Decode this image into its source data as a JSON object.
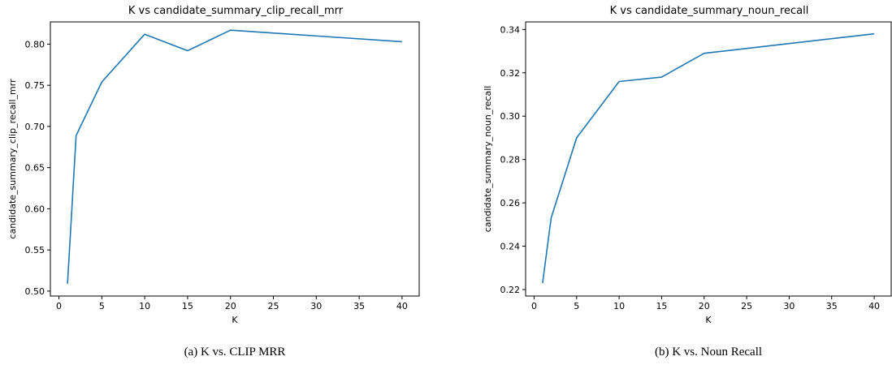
{
  "chart_data": [
    {
      "type": "line",
      "title": "K vs candidate_summary_clip_recall_mrr",
      "xlabel": "K",
      "ylabel": "candidate_summary_clip_recall_mrr",
      "caption": "(a) K vs. CLIP MRR",
      "xlim": [
        -1,
        42
      ],
      "ylim": [
        0.494,
        0.827
      ],
      "xticks": [
        0,
        5,
        10,
        15,
        20,
        25,
        30,
        35,
        40
      ],
      "yticks": [
        0.5,
        0.55,
        0.6,
        0.65,
        0.7,
        0.75,
        0.8
      ],
      "ytick_decimals": 2,
      "grid": false,
      "line_color": "#1f77b4",
      "series": [
        {
          "x": [
            1,
            2,
            5,
            10,
            15,
            20,
            40
          ],
          "y": [
            0.509,
            0.689,
            0.754,
            0.812,
            0.792,
            0.817,
            0.803
          ]
        }
      ]
    },
    {
      "type": "line",
      "title": "K vs candidate_summary_noun_recall",
      "xlabel": "K",
      "ylabel": "candidate_summary_noun_recall",
      "caption": "(b) K vs. Noun Recall",
      "xlim": [
        -1,
        42
      ],
      "ylim": [
        0.217,
        0.3435
      ],
      "xticks": [
        0,
        5,
        10,
        15,
        20,
        25,
        30,
        35,
        40
      ],
      "yticks": [
        0.22,
        0.24,
        0.26,
        0.28,
        0.3,
        0.32,
        0.34
      ],
      "ytick_decimals": 2,
      "grid": false,
      "line_color": "#1f77b4",
      "series": [
        {
          "x": [
            1,
            2,
            5,
            10,
            15,
            20,
            40
          ],
          "y": [
            0.223,
            0.253,
            0.29,
            0.316,
            0.318,
            0.329,
            0.338
          ]
        }
      ]
    }
  ]
}
